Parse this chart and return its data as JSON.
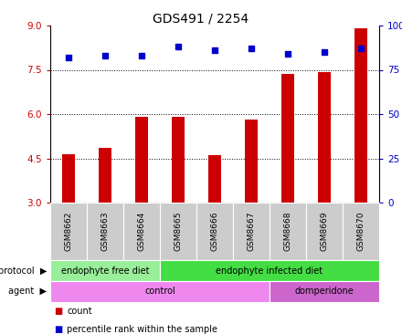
{
  "title": "GDS491 / 2254",
  "samples": [
    "GSM8662",
    "GSM8663",
    "GSM8664",
    "GSM8665",
    "GSM8666",
    "GSM8667",
    "GSM8668",
    "GSM8669",
    "GSM8670"
  ],
  "bar_values": [
    4.65,
    4.85,
    5.92,
    5.92,
    4.62,
    5.82,
    7.35,
    7.42,
    8.92
  ],
  "scatter_values": [
    82,
    83,
    83,
    88,
    86,
    87,
    84,
    85,
    87
  ],
  "bar_bottom": 3.0,
  "ylim_left": [
    3.0,
    9.0
  ],
  "ylim_right": [
    0,
    100
  ],
  "yticks_left": [
    3,
    4.5,
    6,
    7.5,
    9
  ],
  "yticks_right": [
    0,
    25,
    50,
    75,
    100
  ],
  "grid_lines": [
    4.5,
    6.0,
    7.5
  ],
  "bar_color": "#cc0000",
  "scatter_color": "#0000cc",
  "protocol_groups": [
    {
      "label": "endophyte free diet",
      "start": 0,
      "end": 3,
      "color": "#99ee99"
    },
    {
      "label": "endophyte infected diet",
      "start": 3,
      "end": 9,
      "color": "#44dd44"
    }
  ],
  "agent_groups": [
    {
      "label": "control",
      "start": 0,
      "end": 6,
      "color": "#ee88ee"
    },
    {
      "label": "domperidone",
      "start": 6,
      "end": 9,
      "color": "#cc66cc"
    }
  ],
  "protocol_label": "protocol",
  "agent_label": "agent",
  "legend_count_color": "#cc0000",
  "legend_scatter_color": "#0000cc",
  "legend_count_label": "count",
  "legend_scatter_label": "percentile rank within the sample",
  "bg_color": "#ffffff",
  "tick_label_bg": "#cccccc",
  "left_tick_color": "#cc0000",
  "right_tick_color": "#0000cc"
}
